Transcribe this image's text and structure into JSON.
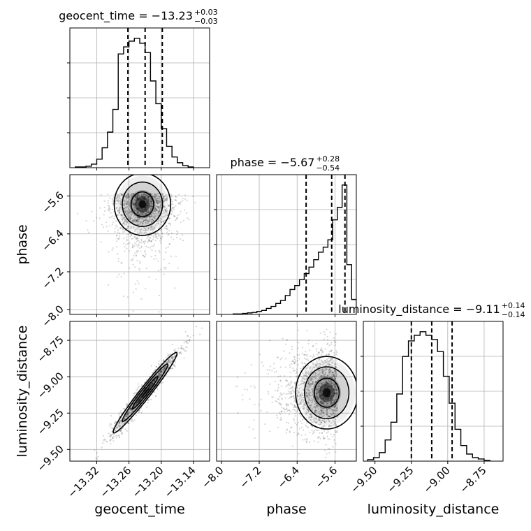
{
  "chart_data": {
    "type": "corner",
    "parameters": [
      "geocent_time",
      "phase",
      "luminosity_distance"
    ],
    "axis_labels": {
      "geocent_time": "geocent_time",
      "phase": "phase",
      "luminosity_distance": "luminosity_distance"
    },
    "titles": {
      "geocent_time": {
        "name": "geocent_time",
        "median": "−13.23",
        "plus": "+0.03",
        "minus": "−0.03"
      },
      "phase": {
        "name": "phase",
        "median": "−5.67",
        "plus": "+0.28",
        "minus": "−0.54"
      },
      "luminosity_distance": {
        "name": "luminosity_distance",
        "median": "−9.11",
        "plus": "+0.14",
        "minus": "−0.14"
      }
    },
    "ranges": {
      "geocent_time": [
        -13.37,
        -13.11
      ],
      "phase": [
        -8.1,
        -5.15
      ],
      "luminosity_distance": [
        -9.58,
        -8.62
      ]
    },
    "ticks": {
      "geocent_time": {
        "values": [
          -13.32,
          -13.26,
          -13.2,
          -13.14
        ],
        "labels": [
          "−13.32",
          "−13.26",
          "−13.20",
          "−13.14"
        ]
      },
      "phase": {
        "values": [
          -8.0,
          -7.2,
          -6.4,
          -5.6
        ],
        "labels": [
          "−8.0",
          "−7.2",
          "−6.4",
          "−5.6"
        ]
      },
      "luminosity_distance": {
        "values": [
          -9.5,
          -9.25,
          -9.0,
          -8.75
        ],
        "labels": [
          "−9.50",
          "−9.25",
          "−9.00",
          "−8.75"
        ]
      }
    },
    "quantiles": {
      "geocent_time": [
        -13.262,
        -13.23,
        -13.198
      ],
      "phase": [
        -6.21,
        -5.67,
        -5.39
      ],
      "luminosity_distance": [
        -9.25,
        -9.11,
        -8.97
      ]
    },
    "histograms": {
      "geocent_time": {
        "edges": [
          -13.36,
          -13.35,
          -13.34,
          -13.33,
          -13.32,
          -13.31,
          -13.3,
          -13.29,
          -13.28,
          -13.27,
          -13.26,
          -13.25,
          -13.24,
          -13.23,
          -13.22,
          -13.21,
          -13.2,
          -13.19,
          -13.18,
          -13.17,
          -13.16,
          -13.15,
          -13.14
        ],
        "counts": [
          1,
          1,
          2,
          5,
          12,
          28,
          50,
          82,
          160,
          170,
          178,
          182,
          175,
          162,
          122,
          90,
          55,
          30,
          15,
          7,
          3,
          1
        ]
      },
      "phase": {
        "edges": [
          -7.75,
          -7.65,
          -7.55,
          -7.45,
          -7.35,
          -7.25,
          -7.15,
          -7.05,
          -6.95,
          -6.85,
          -6.75,
          -6.65,
          -6.55,
          -6.45,
          -6.35,
          -6.25,
          -6.15,
          -6.05,
          -5.95,
          -5.85,
          -5.75,
          -5.65,
          -5.55,
          -5.45,
          -5.35,
          -5.25,
          -5.15
        ],
        "counts": [
          1,
          1,
          2,
          3,
          4,
          6,
          8,
          12,
          16,
          22,
          28,
          38,
          50,
          58,
          70,
          82,
          95,
          110,
          125,
          135,
          150,
          190,
          215,
          260,
          100,
          30
        ]
      },
      "luminosity_distance": {
        "edges": [
          -9.55,
          -9.51,
          -9.47,
          -9.43,
          -9.39,
          -9.35,
          -9.31,
          -9.27,
          -9.23,
          -9.19,
          -9.15,
          -9.11,
          -9.07,
          -9.03,
          -8.99,
          -8.95,
          -8.91,
          -8.87,
          -8.83,
          -8.79,
          -8.75,
          -8.71
        ],
        "counts": [
          2,
          5,
          12,
          30,
          55,
          95,
          148,
          170,
          178,
          183,
          178,
          172,
          155,
          120,
          82,
          45,
          22,
          10,
          5,
          3,
          1
        ]
      }
    },
    "hist2d_samples": [
      {
        "x": "geocent_time",
        "y": "phase",
        "x_center": -13.235,
        "x_sd": 0.03,
        "y_mode": -5.55,
        "y_sd": 0.5,
        "corr": 0.0,
        "n": 1500
      },
      {
        "x": "geocent_time",
        "y": "luminosity_distance",
        "x_center": -13.23,
        "x_sd": 0.032,
        "y_center": -9.11,
        "y_sd": 0.15,
        "corr": 0.97,
        "n": 1200
      },
      {
        "x": "phase",
        "y": "luminosity_distance",
        "x_mode": -5.55,
        "x_sd": 0.5,
        "y_center": -9.11,
        "y_sd": 0.15,
        "corr": 0.0,
        "n": 1500
      }
    ],
    "grid": true
  }
}
